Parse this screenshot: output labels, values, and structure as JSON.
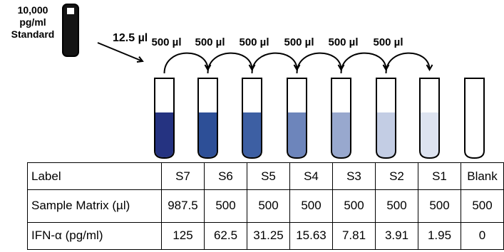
{
  "standard": {
    "concentration_line1": "10,000",
    "concentration_line2": "pg/ml",
    "name": "Standard",
    "initial_transfer": "12.5 µl"
  },
  "transfer_labels": [
    "500 µl",
    "500 µl",
    "500 µl",
    "500 µl",
    "500 µl",
    "500 µl"
  ],
  "tubes": [
    {
      "id": "S7",
      "color": "#253381"
    },
    {
      "id": "S6",
      "color": "#2d4f97"
    },
    {
      "id": "S5",
      "color": "#3d5fa3"
    },
    {
      "id": "S4",
      "color": "#6d85bb"
    },
    {
      "id": "S3",
      "color": "#98a8ce"
    },
    {
      "id": "S2",
      "color": "#c3cde4"
    },
    {
      "id": "S1",
      "color": "#dde3f0"
    },
    {
      "id": "Blank",
      "color": "#ffffff"
    }
  ],
  "table": {
    "rows": [
      {
        "header": "Label",
        "cells": [
          "S7",
          "S6",
          "S5",
          "S4",
          "S3",
          "S2",
          "S1",
          "Blank"
        ]
      },
      {
        "header": "Sample Matrix (µl)",
        "cells": [
          "987.5",
          "500",
          "500",
          "500",
          "500",
          "500",
          "500",
          "500"
        ]
      },
      {
        "header": "IFN-α (pg/ml)",
        "cells": [
          "125",
          "62.5",
          "31.25",
          "15.63",
          "7.81",
          "3.91",
          "1.95",
          "0"
        ]
      }
    ]
  }
}
